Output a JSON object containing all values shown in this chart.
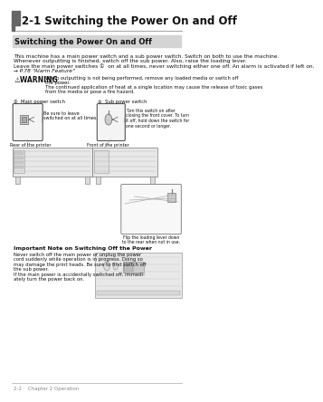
{
  "bg_color": "#ffffff",
  "header_title": "2-1 Switching the Power On and Off",
  "section_title": "Switching the Power On and Off",
  "section_title_bg": "#d4d4d4",
  "body_lines": [
    "This machine has a main power switch and a sub power switch. Switch on both to use the machine.",
    "Whenever outputting is finished, switch off the sub power. Also, raise the loading lever.",
    "Leave the main power switches ①  on at all times, never switching either one off. An alarm is activated if left on.",
    "→ P.78 “Alarm Feature”"
  ],
  "warning_label": "⚠WARNING",
  "warning_lines": [
    "When outputting is not being performed, remove any loaded media or switch off",
    "the power.",
    "The continued application of heat at a single location may cause the release of toxic gases",
    "from the media or pose a fire hazard."
  ],
  "label_main": "①  Main power switch",
  "label_sub": "②  Sub power switch",
  "caption_main_1": "Be sure to leave",
  "caption_main_2": "switched on at all times.",
  "caption_rear": "Rear of the printer",
  "caption_front": "Front of the printer",
  "caption_sub_1": "Turn this switch on after",
  "caption_sub_2": "closing the front cover. To turn",
  "caption_sub_3": "it off, hold down the switch for",
  "caption_sub_4": "one second or longer.",
  "caption_lever_1": "Flip the loading lever down",
  "caption_lever_2": "to the rear when not in use.",
  "important_title": "Important Note on Switching Off the Power",
  "important_lines": [
    "Never switch off the main power or unplug the power",
    "cord suddenly while operation is in progress. Doing so",
    "may damage the print heads. Be sure to first switch off",
    "the sub power.",
    "If the main power is accidentally switched off, immedi-",
    "ately turn the power back on."
  ],
  "footer_text": "2-2    Chapter 2 Operation",
  "accent_color": "#666666",
  "line_color": "#aaaaaa",
  "text_color": "#111111",
  "box_edge": "#555555",
  "box_face": "#f4f4f4",
  "printer_face": "#e8e8e8",
  "printer_edge": "#777777"
}
